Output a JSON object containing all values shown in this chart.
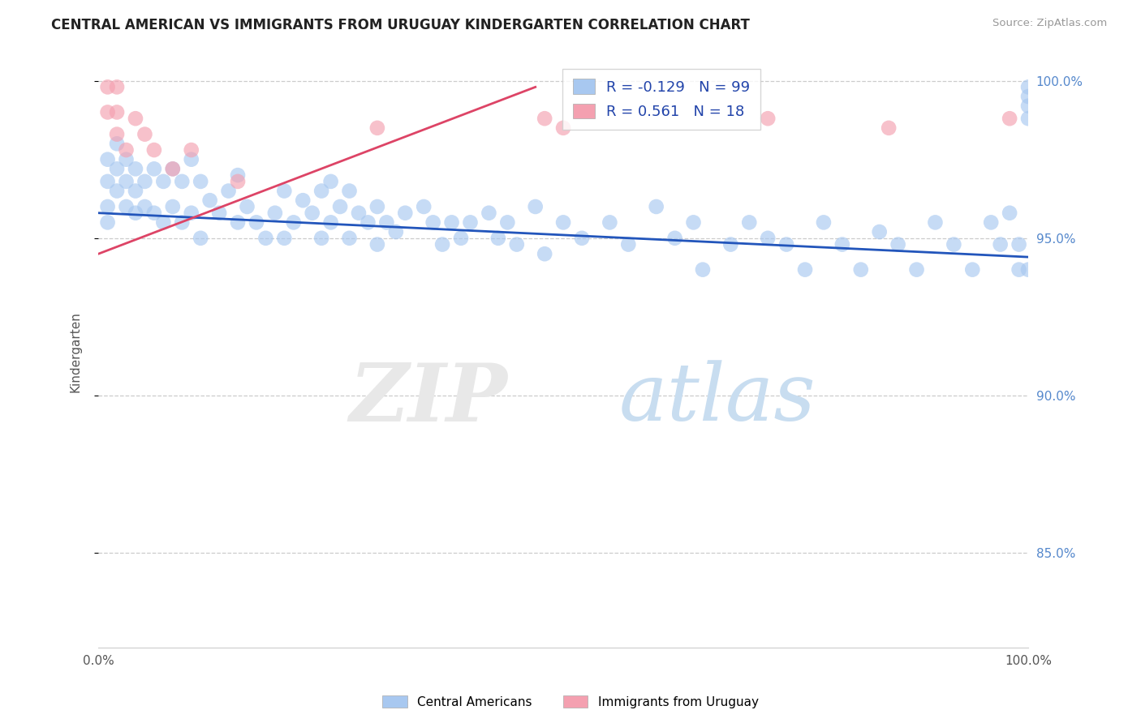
{
  "title": "CENTRAL AMERICAN VS IMMIGRANTS FROM URUGUAY KINDERGARTEN CORRELATION CHART",
  "source": "Source: ZipAtlas.com",
  "ylabel": "Kindergarten",
  "xlim": [
    0.0,
    1.0
  ],
  "ylim": [
    0.82,
    1.008
  ],
  "yticks": [
    0.85,
    0.9,
    0.95,
    1.0
  ],
  "ytick_labels": [
    "85.0%",
    "90.0%",
    "95.0%",
    "100.0%"
  ],
  "blue_color": "#a8c8f0",
  "pink_color": "#f4a0b0",
  "blue_line_color": "#2255bb",
  "pink_line_color": "#dd4466",
  "legend_R_blue": "-0.129",
  "legend_N_blue": "99",
  "legend_R_pink": "0.561",
  "legend_N_pink": "18",
  "blue_label": "Central Americans",
  "pink_label": "Immigrants from Uruguay",
  "blue_trend_x": [
    0.0,
    1.0
  ],
  "blue_trend_y": [
    0.958,
    0.944
  ],
  "pink_trend_x": [
    0.0,
    0.47
  ],
  "pink_trend_y": [
    0.945,
    0.998
  ],
  "blue_scatter_x": [
    0.01,
    0.01,
    0.01,
    0.01,
    0.02,
    0.02,
    0.02,
    0.03,
    0.03,
    0.03,
    0.04,
    0.04,
    0.04,
    0.05,
    0.05,
    0.06,
    0.06,
    0.07,
    0.07,
    0.08,
    0.08,
    0.09,
    0.09,
    0.1,
    0.1,
    0.11,
    0.11,
    0.12,
    0.13,
    0.14,
    0.15,
    0.15,
    0.16,
    0.17,
    0.18,
    0.19,
    0.2,
    0.2,
    0.21,
    0.22,
    0.23,
    0.24,
    0.24,
    0.25,
    0.25,
    0.26,
    0.27,
    0.27,
    0.28,
    0.29,
    0.3,
    0.3,
    0.31,
    0.32,
    0.33,
    0.35,
    0.36,
    0.37,
    0.38,
    0.39,
    0.4,
    0.42,
    0.43,
    0.44,
    0.45,
    0.47,
    0.48,
    0.5,
    0.52,
    0.55,
    0.57,
    0.6,
    0.62,
    0.64,
    0.65,
    0.68,
    0.7,
    0.72,
    0.74,
    0.76,
    0.78,
    0.8,
    0.82,
    0.84,
    0.86,
    0.88,
    0.9,
    0.92,
    0.94,
    0.96,
    0.97,
    0.98,
    0.99,
    0.99,
    1.0,
    1.0,
    1.0,
    1.0,
    1.0
  ],
  "blue_scatter_y": [
    0.975,
    0.968,
    0.96,
    0.955,
    0.98,
    0.972,
    0.965,
    0.975,
    0.968,
    0.96,
    0.972,
    0.965,
    0.958,
    0.968,
    0.96,
    0.972,
    0.958,
    0.968,
    0.955,
    0.972,
    0.96,
    0.968,
    0.955,
    0.975,
    0.958,
    0.968,
    0.95,
    0.962,
    0.958,
    0.965,
    0.97,
    0.955,
    0.96,
    0.955,
    0.95,
    0.958,
    0.965,
    0.95,
    0.955,
    0.962,
    0.958,
    0.965,
    0.95,
    0.968,
    0.955,
    0.96,
    0.965,
    0.95,
    0.958,
    0.955,
    0.96,
    0.948,
    0.955,
    0.952,
    0.958,
    0.96,
    0.955,
    0.948,
    0.955,
    0.95,
    0.955,
    0.958,
    0.95,
    0.955,
    0.948,
    0.96,
    0.945,
    0.955,
    0.95,
    0.955,
    0.948,
    0.96,
    0.95,
    0.955,
    0.94,
    0.948,
    0.955,
    0.95,
    0.948,
    0.94,
    0.955,
    0.948,
    0.94,
    0.952,
    0.948,
    0.94,
    0.955,
    0.948,
    0.94,
    0.955,
    0.948,
    0.958,
    0.948,
    0.94,
    0.998,
    0.995,
    0.992,
    0.988,
    0.94
  ],
  "pink_scatter_x": [
    0.01,
    0.01,
    0.02,
    0.02,
    0.02,
    0.03,
    0.04,
    0.05,
    0.06,
    0.08,
    0.1,
    0.15,
    0.3,
    0.48,
    0.72,
    0.85,
    0.98,
    0.5
  ],
  "pink_scatter_y": [
    0.998,
    0.99,
    0.998,
    0.99,
    0.983,
    0.978,
    0.988,
    0.983,
    0.978,
    0.972,
    0.978,
    0.968,
    0.985,
    0.988,
    0.988,
    0.985,
    0.988,
    0.985
  ]
}
